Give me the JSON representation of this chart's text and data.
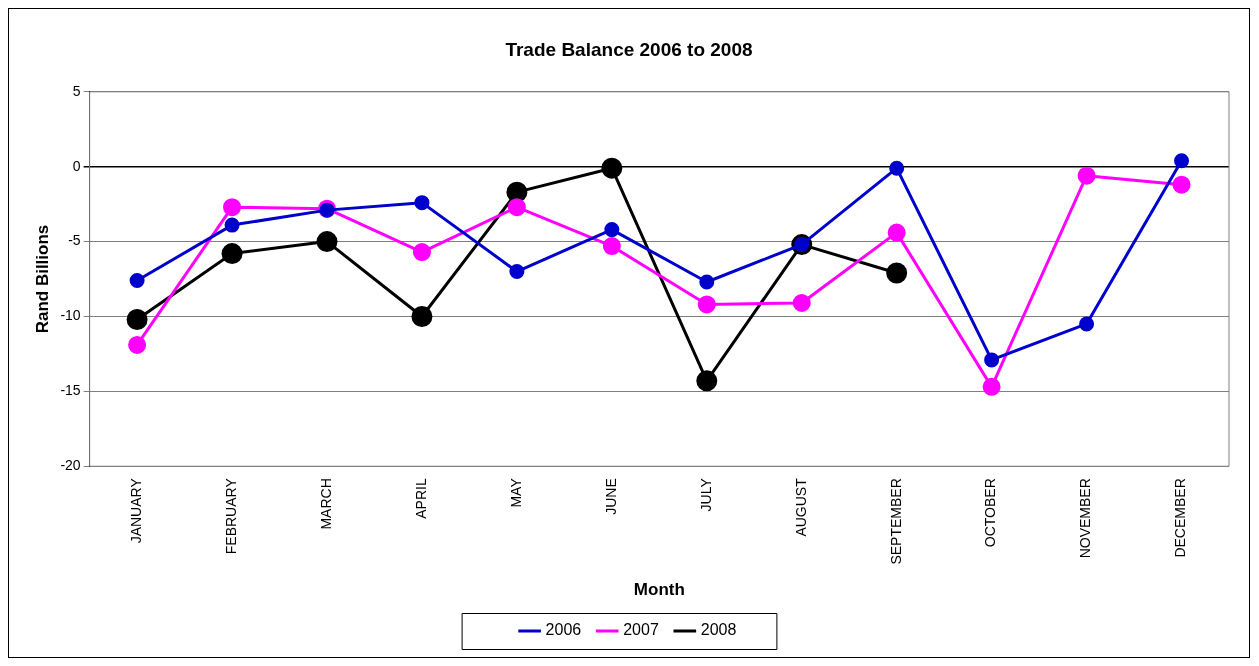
{
  "chart_data": {
    "type": "line",
    "title": "Trade Balance 2006 to 2008",
    "xlabel": "Month",
    "ylabel": "Rand Billions",
    "categories": [
      "JANUARY",
      "FEBRUARY",
      "MARCH",
      "APRIL",
      "MAY",
      "JUNE",
      "JULY",
      "AUGUST",
      "SEPTEMBER",
      "OCTOBER",
      "NOVEMBER",
      "DECEMBER"
    ],
    "series": [
      {
        "name": "2006",
        "color": "#0000cc",
        "values": [
          -7.6,
          -3.9,
          -2.9,
          -2.4,
          -7.0,
          -4.2,
          -7.7,
          -5.2,
          -0.1,
          -12.9,
          -10.5,
          0.4
        ]
      },
      {
        "name": "2007",
        "color": "#ff00ff",
        "values": [
          -11.9,
          -2.7,
          -2.8,
          -5.7,
          -2.7,
          -5.3,
          -9.2,
          -9.1,
          -4.4,
          -14.7,
          -0.6,
          -1.2
        ]
      },
      {
        "name": "2008",
        "color": "#000000",
        "values": [
          -10.2,
          -5.8,
          -5.0,
          -10.0,
          -1.7,
          -0.1,
          -14.3,
          -5.2,
          -7.1,
          null,
          null,
          null
        ]
      }
    ],
    "ylim": [
      -20,
      5
    ],
    "yticks": [
      -20,
      -15,
      -10,
      -5,
      0,
      5
    ],
    "grid": "y",
    "legend": "bottom",
    "marker": "circle",
    "line_style": "solid"
  }
}
